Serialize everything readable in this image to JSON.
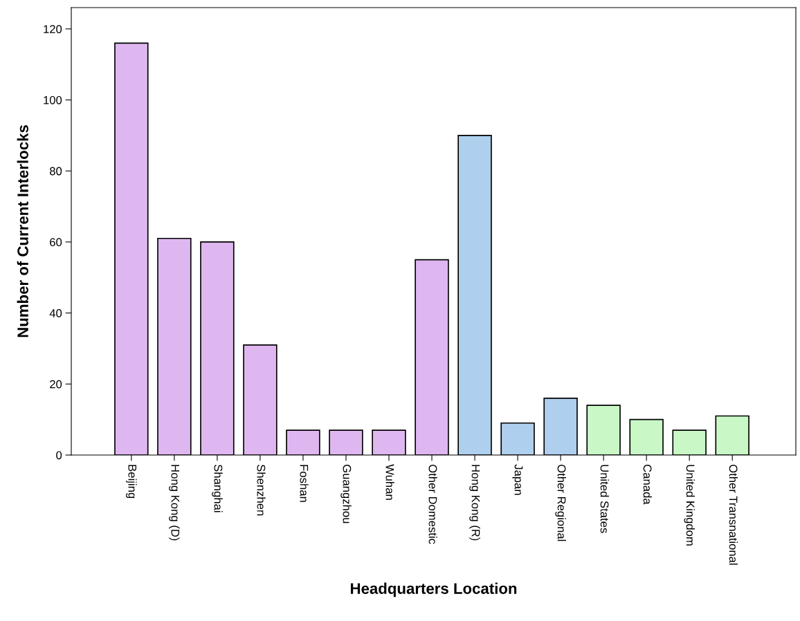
{
  "chart_data": {
    "type": "bar",
    "xlabel": "Headquarters Location",
    "ylabel": "Number of Current Interlocks",
    "categories": [
      "Beijing",
      "Hong Kong (D)",
      "Shanghai",
      "Shenzhen",
      "Foshan",
      "Guangzhou",
      "Wuhan",
      "Other Domestic",
      "Hong Kong (R)",
      "Japan",
      "Other Regional",
      "United States",
      "Canada",
      "United Kingdom",
      "Other Transnational"
    ],
    "values": [
      116,
      61,
      60,
      31,
      7,
      7,
      7,
      55,
      90,
      9,
      16,
      14,
      10,
      7,
      11
    ],
    "colors": [
      "#dfb7f0",
      "#dfb7f0",
      "#dfb7f0",
      "#dfb7f0",
      "#dfb7f0",
      "#dfb7f0",
      "#dfb7f0",
      "#dfb7f0",
      "#afcfee",
      "#afcfee",
      "#afcfee",
      "#c9f8c6",
      "#c9f8c6",
      "#c9f8c6",
      "#c9f8c6"
    ],
    "ylim": [
      0,
      126
    ],
    "yticks": [
      0,
      20,
      40,
      60,
      80,
      100,
      120
    ],
    "grid": false,
    "legend": false
  }
}
